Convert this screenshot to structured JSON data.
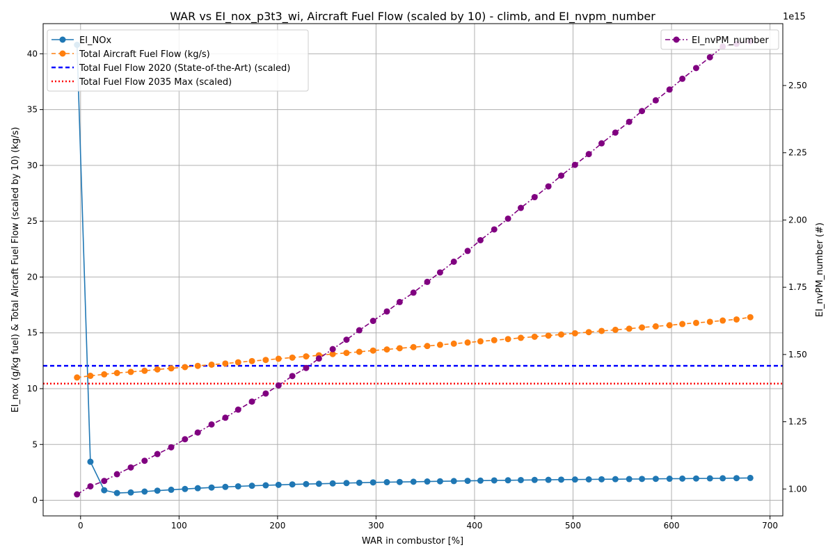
{
  "chart_data": {
    "type": "line",
    "title": "WAR vs EI_nox_p3t3_wi, Aircraft Fuel Flow (scaled by 10) - climb, and EI_nvpm_number",
    "xlabel": "WAR in combustor [%]",
    "ylabel_left": "EI_nox (g/kg fuel) & Total Aircaft Fuel Flow (scaled by 10) (kg/s)",
    "ylabel_right": "EI_nvPM_number (#)",
    "right_axis_offset_text": "1e15",
    "xlim": [
      -38,
      713
    ],
    "ylim_left": [
      -1.4,
      42.7
    ],
    "ylim_right": [
      0.9,
      2.73
    ],
    "x_ticks": [
      0,
      100,
      200,
      300,
      400,
      500,
      600,
      700
    ],
    "y_ticks_left": [
      0,
      5,
      10,
      15,
      20,
      25,
      30,
      35,
      40
    ],
    "y_ticks_right": [
      1.0,
      1.25,
      1.5,
      1.75,
      2.0,
      2.25,
      2.5
    ],
    "y_tick_labels_right": [
      "1.00",
      "1.25",
      "1.50",
      "1.75",
      "2.00",
      "2.25",
      "2.50"
    ],
    "grid": true,
    "legend_left_placement": "upper-left",
    "legend_right_placement": "upper-right",
    "x": [
      -3.6,
      10,
      24,
      37,
      51,
      65,
      78,
      92,
      106,
      119,
      133,
      147,
      160,
      174,
      188,
      201,
      215,
      229,
      242,
      256,
      270,
      283,
      297,
      311,
      324,
      338,
      352,
      365,
      379,
      393,
      406,
      420,
      434,
      447,
      461,
      475,
      488,
      502,
      516,
      529,
      543,
      557,
      570,
      584,
      598,
      611,
      625,
      639,
      652,
      666,
      680
    ],
    "series": [
      {
        "name": "EI_NOx",
        "axis": "left",
        "color": "#1f77b4",
        "linestyle": "solid",
        "values": [
          40.8,
          3.45,
          0.9,
          0.65,
          0.7,
          0.78,
          0.86,
          0.94,
          1.01,
          1.08,
          1.14,
          1.2,
          1.25,
          1.3,
          1.34,
          1.38,
          1.42,
          1.45,
          1.48,
          1.51,
          1.54,
          1.57,
          1.6,
          1.62,
          1.64,
          1.66,
          1.68,
          1.7,
          1.72,
          1.74,
          1.76,
          1.78,
          1.79,
          1.81,
          1.82,
          1.83,
          1.85,
          1.86,
          1.87,
          1.88,
          1.89,
          1.9,
          1.91,
          1.92,
          1.93,
          1.94,
          1.95,
          1.96,
          1.97,
          1.98,
          2.0
        ]
      },
      {
        "name": "Total Aircraft Fuel Flow (kg/s)",
        "axis": "left",
        "color": "#ff7f0e",
        "linestyle": "dashed",
        "values": [
          11.0,
          11.15,
          11.28,
          11.4,
          11.5,
          11.6,
          11.72,
          11.82,
          11.93,
          12.04,
          12.15,
          12.25,
          12.36,
          12.47,
          12.57,
          12.68,
          12.78,
          12.89,
          12.99,
          13.1,
          13.2,
          13.3,
          13.41,
          13.51,
          13.62,
          13.72,
          13.82,
          13.93,
          14.03,
          14.13,
          14.24,
          14.34,
          14.44,
          14.55,
          14.65,
          14.75,
          14.85,
          14.96,
          15.06,
          15.17,
          15.27,
          15.37,
          15.48,
          15.58,
          15.68,
          15.79,
          15.89,
          15.99,
          16.1,
          16.2,
          16.4
        ]
      },
      {
        "name": "EI_nvPM_number",
        "axis": "right",
        "color": "#800080",
        "linestyle": "dashdot",
        "values": [
          0.98,
          1.01,
          1.03,
          1.055,
          1.08,
          1.105,
          1.13,
          1.155,
          1.185,
          1.21,
          1.24,
          1.265,
          1.295,
          1.325,
          1.355,
          1.385,
          1.42,
          1.45,
          1.485,
          1.52,
          1.555,
          1.59,
          1.625,
          1.66,
          1.695,
          1.73,
          1.77,
          1.805,
          1.845,
          1.885,
          1.925,
          1.965,
          2.005,
          2.045,
          2.085,
          2.125,
          2.165,
          2.205,
          2.245,
          2.285,
          2.325,
          2.365,
          2.405,
          2.445,
          2.485,
          2.525,
          2.565,
          2.605,
          2.645,
          2.655,
          2.665
        ]
      }
    ],
    "reference_lines": [
      {
        "name": "Total Fuel Flow 2020 (State-of-the-Art) (scaled)",
        "axis": "left",
        "y": 12.05,
        "color": "#0000ff",
        "linestyle": "dashed"
      },
      {
        "name": "Total Fuel Flow 2035 Max (scaled)",
        "axis": "left",
        "y": 10.45,
        "color": "#ff0000",
        "linestyle": "dotted"
      }
    ]
  }
}
